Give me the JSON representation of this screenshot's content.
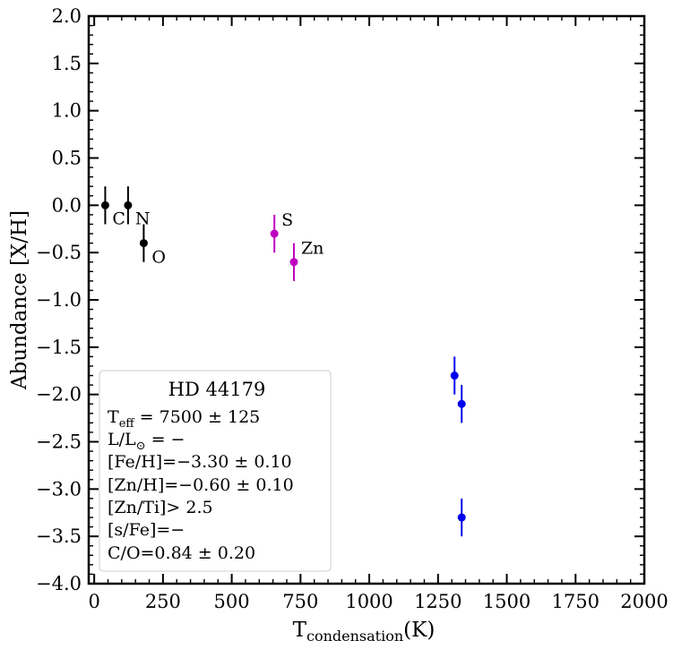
{
  "chart_data": {
    "type": "scatter",
    "xlabel": "T",
    "xlabel_sub": "condensation",
    "xlabel_unit": "(K)",
    "ylabel": "Abundance [X/H]",
    "xlim": [
      -20,
      2000
    ],
    "ylim": [
      -4.0,
      2.0
    ],
    "x_ticks": [
      0,
      250,
      500,
      750,
      1000,
      1250,
      1500,
      1750,
      2000
    ],
    "x_tick_labels": [
      "0",
      "250",
      "500",
      "750",
      "1000",
      "1250",
      "1500",
      "1750",
      "2000"
    ],
    "y_ticks": [
      -4.0,
      -3.5,
      -3.0,
      -2.5,
      -2.0,
      -1.5,
      -1.0,
      -0.5,
      0.0,
      0.5,
      1.0,
      1.5,
      2.0
    ],
    "y_tick_labels": [
      "−4.0",
      "−3.5",
      "−3.0",
      "−2.5",
      "−2.0",
      "−1.5",
      "−1.0",
      "−0.5",
      "0.0",
      "0.5",
      "1.0",
      "1.5",
      "2.0"
    ],
    "grid": false,
    "colors": {
      "light": "#000000",
      "volatile": "#bf00bf",
      "refractory": "#0000ee"
    },
    "points": [
      {
        "label": "C",
        "x": 40,
        "y": 0.0,
        "err": 0.2,
        "color": "#000000"
      },
      {
        "label": "N",
        "x": 123,
        "y": 0.0,
        "err": 0.2,
        "color": "#000000"
      },
      {
        "label": "O",
        "x": 180,
        "y": -0.4,
        "err": 0.2,
        "color": "#000000"
      },
      {
        "label": "S",
        "x": 655,
        "y": -0.3,
        "err": 0.2,
        "color": "#bf00bf"
      },
      {
        "label": "Zn",
        "x": 726,
        "y": -0.6,
        "err": 0.2,
        "color": "#bf00bf"
      },
      {
        "label": "",
        "x": 1310,
        "y": -1.8,
        "err": 0.2,
        "color": "#0000ee"
      },
      {
        "label": "",
        "x": 1336,
        "y": -2.1,
        "err": 0.2,
        "color": "#0000ee"
      },
      {
        "label": "",
        "x": 1336,
        "y": -3.3,
        "err": 0.2,
        "color": "#0000ee"
      }
    ],
    "info_box": {
      "title": "HD 44179",
      "teff_label": "T",
      "teff_sub": "eff",
      "teff_value": " = 7500 ± 125",
      "lum_label": "L/L",
      "lum_sub": "⊙",
      "lum_value": " = −",
      "lines": [
        "[Fe/H]=−3.30 ± 0.10",
        "[Zn/H]=−0.60 ± 0.10",
        "[Zn/Ti]> 2.5",
        "[s/Fe]=−",
        "C/O=0.84 ± 0.20"
      ]
    }
  }
}
